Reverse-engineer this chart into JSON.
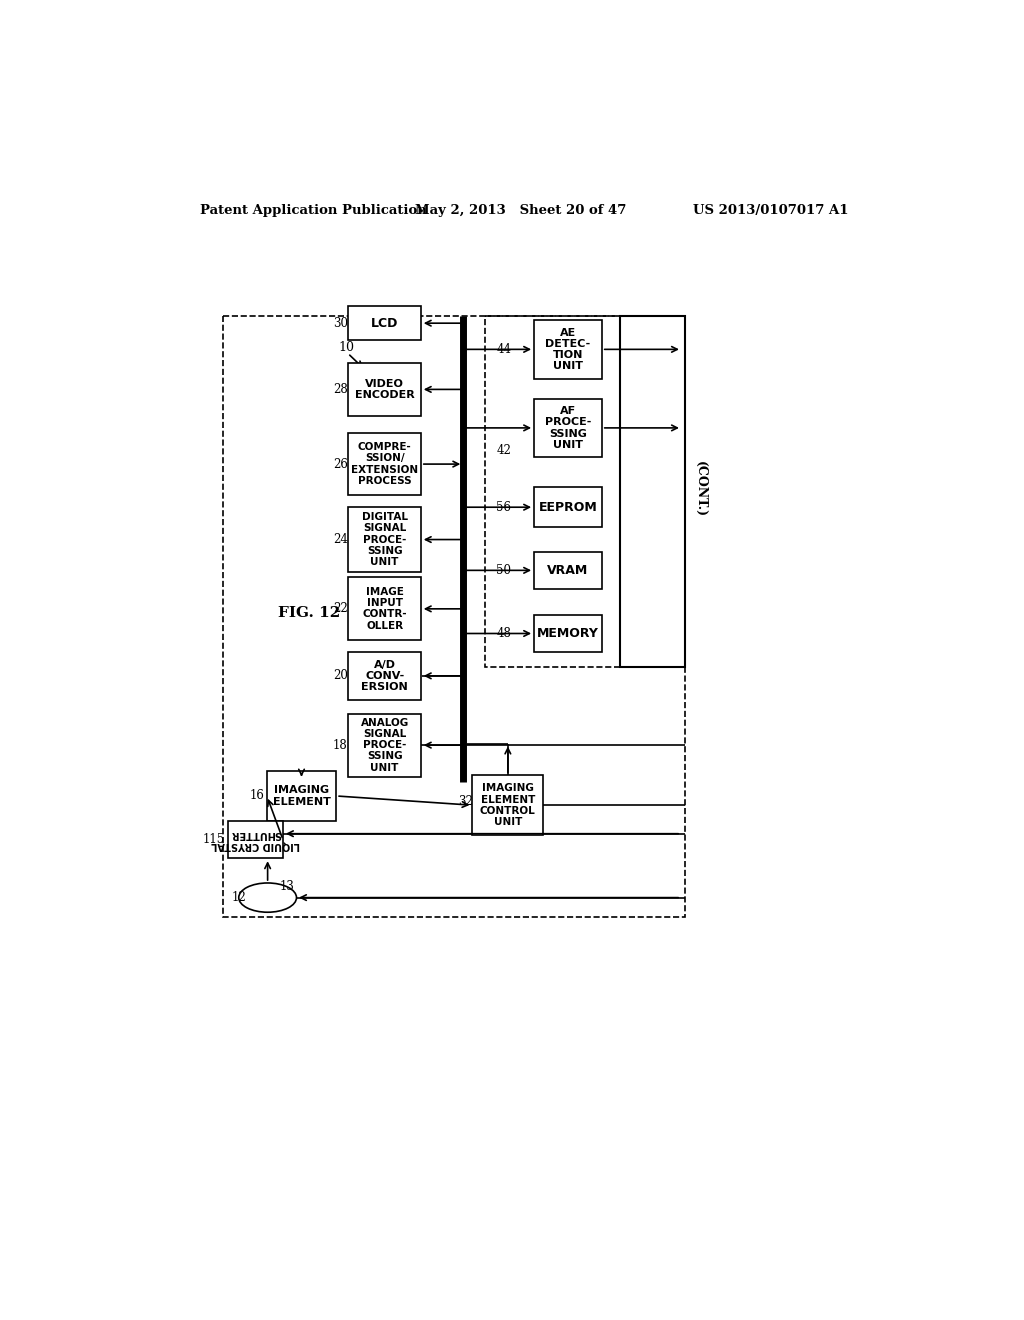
{
  "title_left": "Patent Application Publication",
  "title_mid": "May 2, 2013   Sheet 20 of 47",
  "title_right": "US 2013/0107017 A1",
  "fig_label": "FIG. 12",
  "bg_color": "#ffffff"
}
